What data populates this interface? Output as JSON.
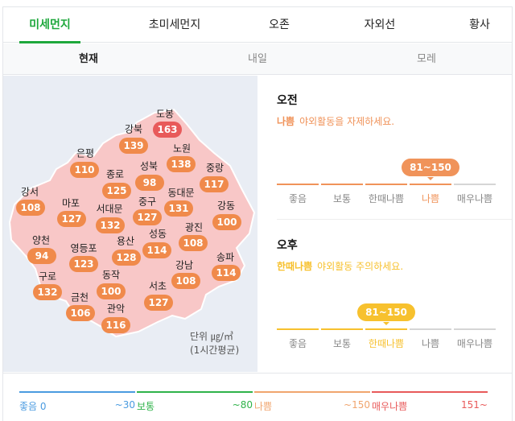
{
  "tabs": [
    {
      "label": "미세먼지",
      "active": true
    },
    {
      "label": "초미세먼지"
    },
    {
      "label": "오존"
    },
    {
      "label": "자외선"
    },
    {
      "label": "황사"
    }
  ],
  "subtabs": [
    {
      "label": "현재",
      "active": true
    },
    {
      "label": "내일"
    },
    {
      "label": "모레"
    }
  ],
  "map": {
    "districts": [
      {
        "name": "도봉",
        "value": "163",
        "level": "매우나쁨"
      },
      {
        "name": "강북",
        "value": "139"
      },
      {
        "name": "노원",
        "value": "138"
      },
      {
        "name": "은평",
        "value": "110"
      },
      {
        "name": "성북",
        "value": "98"
      },
      {
        "name": "중랑",
        "value": "117"
      },
      {
        "name": "종로",
        "value": "125"
      },
      {
        "name": "강서",
        "value": "108"
      },
      {
        "name": "마포",
        "value": "127"
      },
      {
        "name": "서대문",
        "value": "132"
      },
      {
        "name": "중구",
        "value": "127"
      },
      {
        "name": "동대문",
        "value": "131"
      },
      {
        "name": "강동",
        "value": "100"
      },
      {
        "name": "광진",
        "value": "108"
      },
      {
        "name": "양천",
        "value": "94"
      },
      {
        "name": "용산",
        "value": "128"
      },
      {
        "name": "성동",
        "value": "114"
      },
      {
        "name": "영등포",
        "value": "123"
      },
      {
        "name": "송파",
        "value": "114"
      },
      {
        "name": "강남",
        "value": "108"
      },
      {
        "name": "구로",
        "value": "132"
      },
      {
        "name": "동작",
        "value": "100"
      },
      {
        "name": "서초",
        "value": "127"
      },
      {
        "name": "금천",
        "value": "106"
      },
      {
        "name": "관악",
        "value": "116"
      }
    ],
    "unit_label": "단위 ㎍/㎥",
    "unit_note": "(1시간평균)"
  },
  "forecast": {
    "levels": [
      "좋음",
      "보통",
      "한때나쁨",
      "나쁨",
      "매우나쁨"
    ],
    "am": {
      "title": "오전",
      "grade": "나쁨",
      "message": "야외활동을 자제하세요.",
      "range": "81~150",
      "active_index": 3,
      "color": "#f0935a"
    },
    "pm": {
      "title": "오후",
      "grade": "한때나쁨",
      "message": "야외활동 주의하세요.",
      "range": "81~150",
      "active_index": 2,
      "color": "#f7c12e"
    }
  },
  "legend": [
    {
      "label": "좋음",
      "from": "0",
      "to": "~30",
      "color": "#4a9be0"
    },
    {
      "label": "보통",
      "to": "~80",
      "color": "#2fb34a"
    },
    {
      "label": "나쁨",
      "to": "~150",
      "color": "#f0a56e"
    },
    {
      "label": "매우나쁨",
      "to": "151~",
      "color": "#e85a5a"
    }
  ],
  "colors": {
    "accent": "#1ea83c",
    "badge": "#f08a4b",
    "badge_worst": "#e85a5a",
    "map_fill": "#f8c7c7"
  }
}
